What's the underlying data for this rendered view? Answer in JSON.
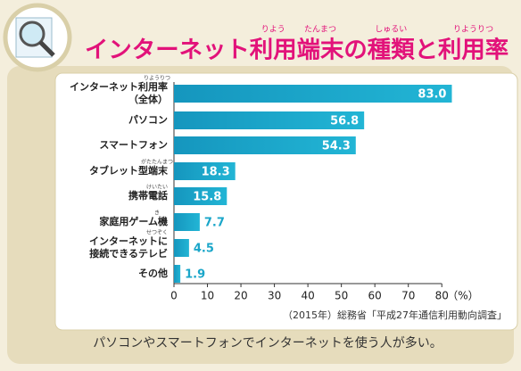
{
  "chart_data": {
    "type": "hbar",
    "title": "インターネット利用端末の種類と利用率",
    "title_furigana": [
      "りよう",
      "たんまつ",
      "しゅるい",
      "りようりつ"
    ],
    "categories": [
      "インターネット利用率\n（全体）",
      "パソコン",
      "スマートフォン",
      "タブレット型端末",
      "携帯電話",
      "家庭用ゲーム機",
      "インターネットに\n接続できるテレビ",
      "その他"
    ],
    "category_furigana": [
      "りようりつ",
      null,
      null,
      "がたたんまつ",
      "けいたい",
      "き",
      "せつぞく",
      null
    ],
    "values": [
      83.0,
      56.8,
      54.3,
      18.3,
      15.8,
      7.7,
      4.5,
      1.9
    ],
    "value_labels": [
      "83.0",
      "56.8",
      "54.3",
      "18.3",
      "15.8",
      "7.7",
      "4.5",
      "1.9"
    ],
    "color": "#1aa6c9",
    "xlim": [
      0,
      85
    ],
    "xticks": [
      0,
      10,
      20,
      30,
      40,
      50,
      60,
      70,
      80
    ],
    "x_unit": "（%）",
    "source": "（2015年）総務省「平成27年通信利用動向調査」",
    "caption": "パソコンやスマートフォンでインターネットを使う人が多い。"
  }
}
